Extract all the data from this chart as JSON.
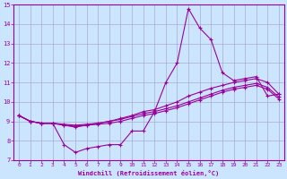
{
  "xlabel": "Windchill (Refroidissement éolien,°C)",
  "x_values": [
    0,
    1,
    2,
    3,
    4,
    5,
    6,
    7,
    8,
    9,
    10,
    11,
    12,
    13,
    14,
    15,
    16,
    17,
    18,
    19,
    20,
    21,
    22,
    23
  ],
  "line1": [
    9.3,
    9.0,
    8.9,
    8.9,
    7.8,
    7.4,
    7.6,
    7.7,
    7.8,
    7.8,
    8.5,
    8.5,
    9.5,
    11.0,
    12.0,
    14.8,
    13.8,
    13.2,
    11.5,
    11.1,
    11.2,
    11.3,
    10.3,
    10.4
  ],
  "line2": [
    9.3,
    9.0,
    8.9,
    8.9,
    8.8,
    8.7,
    8.8,
    8.9,
    9.0,
    9.15,
    9.3,
    9.5,
    9.6,
    9.8,
    10.0,
    10.3,
    10.5,
    10.7,
    10.85,
    11.0,
    11.1,
    11.2,
    11.0,
    10.4
  ],
  "line3": [
    9.3,
    9.0,
    8.9,
    8.9,
    8.85,
    8.8,
    8.85,
    8.9,
    9.0,
    9.1,
    9.25,
    9.4,
    9.5,
    9.65,
    9.8,
    10.0,
    10.2,
    10.4,
    10.6,
    10.75,
    10.85,
    10.95,
    10.75,
    10.25
  ],
  "line4": [
    9.3,
    9.0,
    8.9,
    8.9,
    8.8,
    8.75,
    8.8,
    8.85,
    8.9,
    9.0,
    9.15,
    9.3,
    9.4,
    9.55,
    9.7,
    9.9,
    10.1,
    10.3,
    10.5,
    10.65,
    10.75,
    10.85,
    10.65,
    10.15
  ],
  "line_color": "#990099",
  "bg_color": "#cce5ff",
  "grid_color": "#aaaacc",
  "ylim": [
    7,
    15
  ],
  "xlim_min": -0.5,
  "xlim_max": 23.5,
  "yticks": [
    7,
    8,
    9,
    10,
    11,
    12,
    13,
    14,
    15
  ],
  "xticks": [
    0,
    1,
    2,
    3,
    4,
    5,
    6,
    7,
    8,
    9,
    10,
    11,
    12,
    13,
    14,
    15,
    16,
    17,
    18,
    19,
    20,
    21,
    22,
    23
  ]
}
